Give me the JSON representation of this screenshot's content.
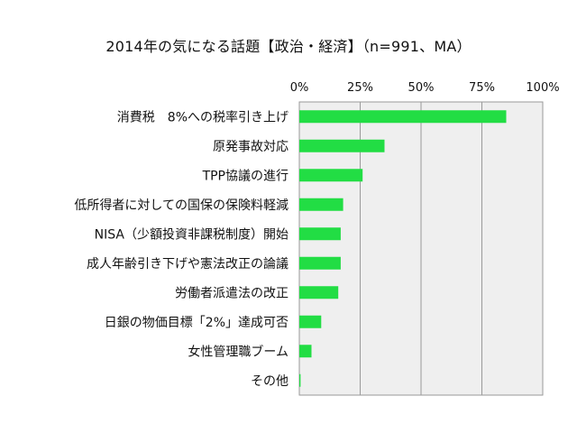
{
  "chart_data": {
    "type": "bar",
    "orientation": "horizontal",
    "title": "2014年の気になる話題【政治・経済】（n=991、MA）",
    "categories": [
      "消費税　8%への税率引き上げ",
      "原発事故対応",
      "TPP協議の進行",
      "低所得者に対しての国保の保険料軽減",
      "NISA（少額投資非課税制度）開始",
      "成人年齢引き下げや憲法改正の論議",
      "労働者派遣法の改正",
      "日銀の物価目標「2%」達成可否",
      "女性管理職ブーム",
      "その他"
    ],
    "values": [
      85,
      35,
      26,
      18,
      17,
      17,
      16,
      9,
      5,
      0.5
    ],
    "xlim": [
      0,
      100
    ],
    "xticks": [
      0,
      25,
      50,
      75,
      100
    ],
    "xtick_labels": [
      "0%",
      "25%",
      "50%",
      "75%",
      "100%"
    ],
    "x_axis_position": "top",
    "grid": true,
    "bar_color": "#22dd44",
    "plot_background": "#efefef"
  }
}
